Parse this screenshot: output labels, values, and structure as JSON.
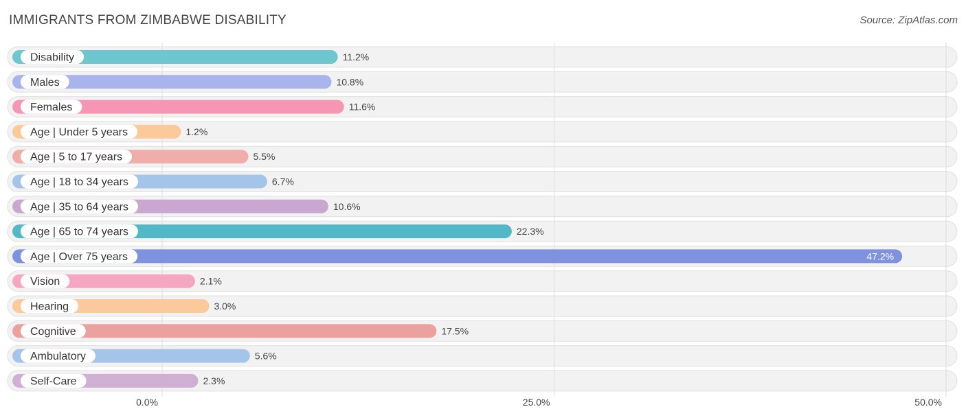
{
  "title": "IMMIGRANTS FROM ZIMBABWE DISABILITY",
  "source": "Source: ZipAtlas.com",
  "chart_data": {
    "type": "bar",
    "orientation": "horizontal",
    "xlim": [
      0,
      50
    ],
    "ticks": [
      {
        "value": 0,
        "label": "0.0%"
      },
      {
        "value": 25,
        "label": "25.0%"
      },
      {
        "value": 50,
        "label": "50.0%"
      }
    ],
    "grid": true,
    "bars": [
      {
        "label": "Disability",
        "value": 11.2,
        "display": "11.2%",
        "color": "#6ec6cf"
      },
      {
        "label": "Males",
        "value": 10.8,
        "display": "10.8%",
        "color": "#aab4ec"
      },
      {
        "label": "Females",
        "value": 11.6,
        "display": "11.6%",
        "color": "#f596b4"
      },
      {
        "label": "Age | Under 5 years",
        "value": 1.2,
        "display": "1.2%",
        "color": "#fbc99a"
      },
      {
        "label": "Age | 5 to 17 years",
        "value": 5.5,
        "display": "5.5%",
        "color": "#f0aeab"
      },
      {
        "label": "Age | 18 to 34 years",
        "value": 6.7,
        "display": "6.7%",
        "color": "#a5c4ea"
      },
      {
        "label": "Age | 35 to 64 years",
        "value": 10.6,
        "display": "10.6%",
        "color": "#c9a8cf"
      },
      {
        "label": "Age | 65 to 74 years",
        "value": 22.3,
        "display": "22.3%",
        "color": "#52b8c6"
      },
      {
        "label": "Age | Over 75 years",
        "value": 47.2,
        "display": "47.2%",
        "color": "#7f92e0"
      },
      {
        "label": "Vision",
        "value": 2.1,
        "display": "2.1%",
        "color": "#f7a6c2"
      },
      {
        "label": "Hearing",
        "value": 3.0,
        "display": "3.0%",
        "color": "#fbc99a"
      },
      {
        "label": "Cognitive",
        "value": 17.5,
        "display": "17.5%",
        "color": "#eba19e"
      },
      {
        "label": "Ambulatory",
        "value": 5.6,
        "display": "5.6%",
        "color": "#a5c4ea"
      },
      {
        "label": "Self-Care",
        "value": 2.3,
        "display": "2.3%",
        "color": "#cfb0d4"
      }
    ]
  }
}
